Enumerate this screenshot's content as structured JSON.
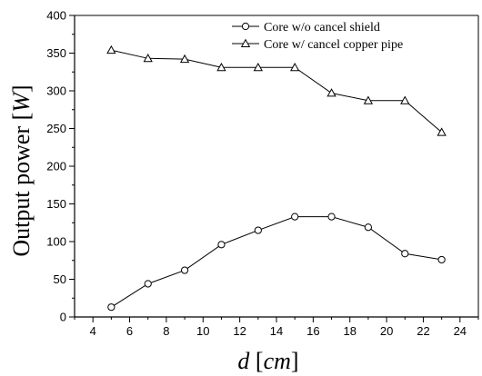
{
  "chart_data": {
    "type": "line",
    "xlabel": "d [cm]",
    "ylabel": "Output power [W]",
    "x_ticks": [
      4,
      6,
      8,
      10,
      12,
      14,
      16,
      18,
      20,
      22,
      24
    ],
    "y_ticks": [
      0,
      50,
      100,
      150,
      200,
      250,
      300,
      350,
      400
    ],
    "xlim": [
      3,
      25
    ],
    "ylim": [
      0,
      400
    ],
    "grid": false,
    "legend_position": "top-right",
    "series": [
      {
        "name": "Core w/o cancel shield",
        "marker": "circle",
        "x": [
          5,
          7,
          9,
          11,
          13,
          15,
          17,
          19,
          21,
          23
        ],
        "values": [
          13,
          44,
          62,
          96,
          115,
          133,
          133,
          119,
          84,
          76
        ]
      },
      {
        "name": "Core w/ cancel copper pipe",
        "marker": "triangle",
        "x": [
          5,
          7,
          9,
          11,
          13,
          15,
          17,
          19,
          21,
          23
        ],
        "values": [
          354,
          343,
          342,
          331,
          331,
          331,
          297,
          287,
          287,
          245
        ]
      }
    ]
  }
}
